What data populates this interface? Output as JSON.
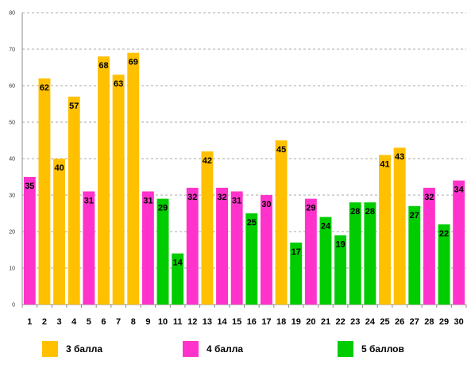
{
  "chart_data": {
    "type": "bar",
    "categories": [
      "1",
      "2",
      "3",
      "4",
      "5",
      "6",
      "7",
      "8",
      "9",
      "10",
      "11",
      "12",
      "13",
      "14",
      "15",
      "16",
      "17",
      "18",
      "19",
      "20",
      "21",
      "22",
      "23",
      "24",
      "25",
      "26",
      "27",
      "28",
      "29",
      "30"
    ],
    "values": [
      35,
      62,
      40,
      57,
      31,
      68,
      63,
      69,
      31,
      29,
      14,
      32,
      42,
      32,
      31,
      25,
      30,
      45,
      17,
      29,
      24,
      19,
      28,
      28,
      41,
      43,
      27,
      32,
      22,
      34
    ],
    "groups": [
      "4 балла",
      "3 балла",
      "3 балла",
      "3 балла",
      "4 балла",
      "3 балла",
      "3 балла",
      "3 балла",
      "4 балла",
      "5 баллов",
      "5 баллов",
      "4 балла",
      "3 балла",
      "4 балла",
      "4 балла",
      "5 баллов",
      "4 балла",
      "3 балла",
      "5 баллов",
      "4 балла",
      "5 баллов",
      "5 баллов",
      "5 баллов",
      "5 баллов",
      "3 балла",
      "3 балла",
      "5 баллов",
      "4 балла",
      "5 баллов",
      "4 балла"
    ],
    "ylim": [
      0,
      80
    ],
    "yticks": [
      "0",
      "10",
      "20",
      "30",
      "40",
      "50",
      "60",
      "70",
      "80"
    ],
    "grid": true,
    "legend_position": "bottom",
    "legend": [
      {
        "name": "3 балла",
        "color": "#FFC000"
      },
      {
        "name": "4 балла",
        "color": "#FF33CC"
      },
      {
        "name": "5 баллов",
        "color": "#00CC00"
      }
    ]
  }
}
